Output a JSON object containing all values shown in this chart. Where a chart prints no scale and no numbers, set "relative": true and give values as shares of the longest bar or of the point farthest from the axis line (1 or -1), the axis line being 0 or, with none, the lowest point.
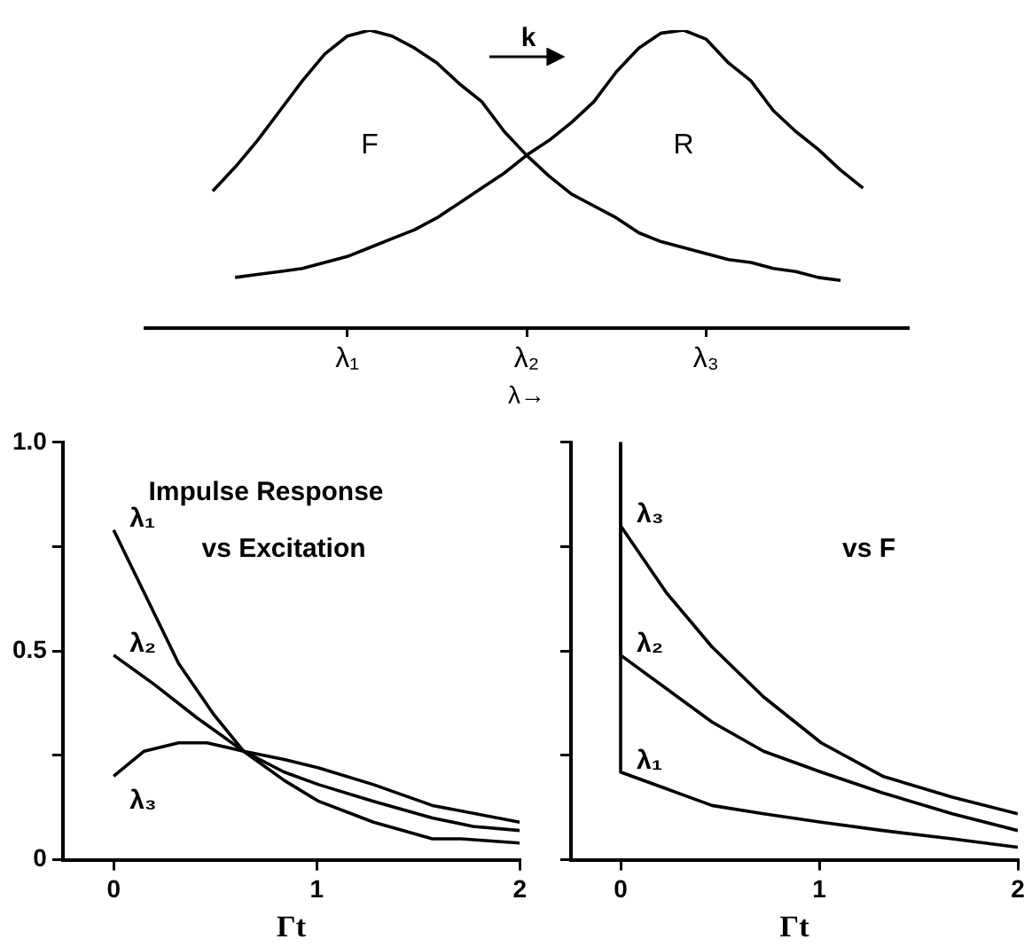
{
  "chart_data": [
    {
      "type": "line",
      "relative": true,
      "xlabel": "λ→",
      "tick_labels": "x",
      "annotations": [
        "k"
      ],
      "categories": [
        null,
        null,
        null,
        null,
        null,
        null,
        null,
        null,
        null,
        "λ₁",
        null,
        null,
        null,
        null,
        null,
        null,
        null,
        "λ₂",
        null,
        null,
        null,
        null,
        null,
        null,
        null,
        "λ₃",
        null,
        null,
        null,
        null,
        null,
        null,
        null,
        null,
        null
      ],
      "series": [
        {
          "name": "F",
          "color": "#000000",
          "values": [
            null,
            null,
            null,
            0.46,
            0.54,
            0.63,
            0.73,
            0.83,
            0.92,
            0.98,
            1.0,
            0.98,
            0.94,
            0.89,
            0.82,
            0.76,
            0.66,
            0.58,
            0.51,
            0.45,
            0.41,
            0.37,
            0.32,
            0.29,
            0.27,
            0.25,
            0.23,
            0.22,
            0.2,
            0.19,
            0.17,
            0.16,
            null,
            null,
            null
          ]
        },
        {
          "name": "R",
          "color": "#000000",
          "values": [
            null,
            null,
            null,
            null,
            0.17,
            0.18,
            0.19,
            0.2,
            0.22,
            0.24,
            0.27,
            0.3,
            0.33,
            0.37,
            0.42,
            0.47,
            0.52,
            0.58,
            0.63,
            0.69,
            0.76,
            0.86,
            0.94,
            0.99,
            1.0,
            0.97,
            0.89,
            0.83,
            0.73,
            0.66,
            0.6,
            0.53,
            0.47,
            null,
            null
          ]
        }
      ]
    },
    {
      "type": "line",
      "xlabel": "Γt",
      "annotations": [
        "Impulse Response",
        "vs Excitation"
      ],
      "xlim": [
        -0.25,
        2
      ],
      "xticks": [
        0,
        1,
        2
      ],
      "ylim": [
        0,
        1
      ],
      "yticks": [
        0,
        {
          "value": 0.25,
          "label": null
        },
        0.5,
        {
          "value": 0.75,
          "label": null
        },
        {
          "value": 1,
          "label": "1.0"
        }
      ],
      "series": [
        {
          "name": "λ₁",
          "color": "#000000",
          "x": [
            0,
            0.15,
            0.32,
            0.49,
            0.64,
            0.84,
            1.01,
            1.28,
            1.57,
            1.71,
            2
          ],
          "values": [
            0.79,
            0.64,
            0.47,
            0.35,
            0.26,
            0.19,
            0.14,
            0.09,
            0.05,
            0.05,
            0.04
          ]
        },
        {
          "name": "λ₂",
          "color": "#000000",
          "x": [
            0,
            0.2,
            0.41,
            0.64,
            0.84,
            1.01,
            1.28,
            1.57,
            1.77,
            2
          ],
          "values": [
            0.49,
            0.42,
            0.34,
            0.26,
            0.21,
            0.18,
            0.14,
            0.1,
            0.08,
            0.07
          ]
        },
        {
          "name": "λ₃",
          "color": "#000000",
          "x": [
            0,
            0.15,
            0.32,
            0.46,
            0.64,
            0.84,
            1.01,
            1.28,
            1.57,
            2
          ],
          "values": [
            0.2,
            0.26,
            0.28,
            0.28,
            0.26,
            0.24,
            0.22,
            0.18,
            0.13,
            0.09
          ]
        }
      ]
    },
    {
      "type": "line",
      "xlabel": "Γt",
      "annotations": [
        "vs F"
      ],
      "tick_labels": "x",
      "xlim": [
        -0.25,
        2
      ],
      "xticks": [
        0,
        1,
        2
      ],
      "ylim": [
        0,
        1
      ],
      "yticks": [
        {
          "value": 0,
          "label": null
        },
        {
          "value": 0.25,
          "label": null
        },
        {
          "value": 0.5,
          "label": null
        },
        {
          "value": 0.75,
          "label": null
        },
        {
          "value": 1,
          "label": null
        }
      ],
      "series": [
        {
          "name": "λ₃",
          "color": "#000000",
          "x": [
            0,
            0,
            0.23,
            0.46,
            0.72,
            1.01,
            1.32,
            1.67,
            2
          ],
          "values": [
            1,
            0.8,
            0.64,
            0.51,
            0.39,
            0.28,
            0.2,
            0.15,
            0.11
          ]
        },
        {
          "name": "λ₂",
          "color": "#000000",
          "x": [
            0,
            0,
            0.23,
            0.46,
            0.72,
            1.01,
            1.32,
            1.67,
            2
          ],
          "values": [
            1,
            0.49,
            0.41,
            0.33,
            0.26,
            0.21,
            0.16,
            0.11,
            0.07
          ]
        },
        {
          "name": "λ₁",
          "color": "#000000",
          "x": [
            0,
            0,
            0.23,
            0.46,
            0.72,
            1.01,
            1.32,
            1.67,
            2
          ],
          "values": [
            1,
            0.21,
            0.17,
            0.13,
            0.11,
            0.09,
            0.07,
            0.05,
            0.03
          ]
        }
      ]
    }
  ]
}
